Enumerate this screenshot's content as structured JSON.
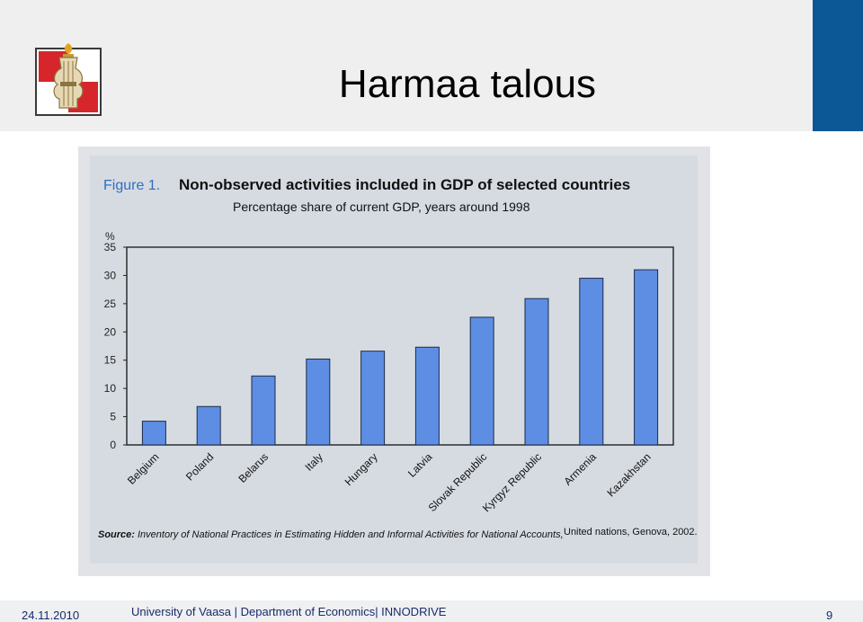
{
  "slide": {
    "title": "Harmaa talous",
    "date": "24.11.2010",
    "footer_text": "University of Vaasa | Department of Economics| INNODRIVE",
    "page_number": "9"
  },
  "colors": {
    "header_bg": "#efefef",
    "accent_blue": "#0c5796",
    "bar_fill": "#5d8ee3",
    "logo_red": "#d6262b"
  },
  "chart_data": {
    "type": "bar",
    "figure_label": "Figure 1.",
    "title": "Non-observed activities included in GDP of selected countries",
    "subtitle": "Percentage share of current GDP, years around 1998",
    "ylabel": "%",
    "ylim": [
      0,
      35
    ],
    "yticks": [
      0,
      5,
      10,
      15,
      20,
      25,
      30,
      35
    ],
    "categories": [
      "Belgium",
      "Poland",
      "Belarus",
      "Italy",
      "Hungary",
      "Latvia",
      "Slovak Republic",
      "Kyrgyz Republic",
      "Armenia",
      "Kazakhstan"
    ],
    "values": [
      4.2,
      6.8,
      12.2,
      15.2,
      16.6,
      17.3,
      22.6,
      25.9,
      29.5,
      31.0
    ],
    "source_label": "Source:",
    "source_text": "Inventory of National Practices in Estimating Hidden and Informal Activities for National Accounts,",
    "source_publisher": "United nations, Genova, 2002."
  }
}
